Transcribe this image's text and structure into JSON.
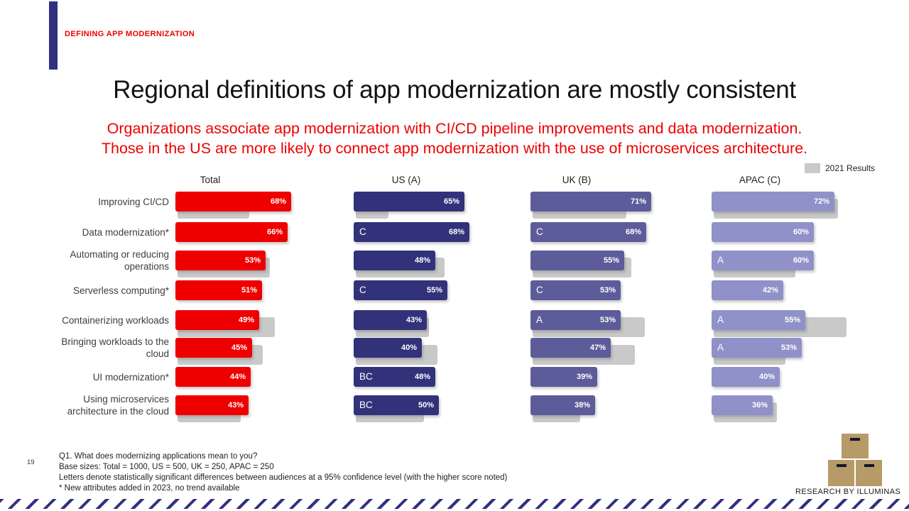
{
  "slide": {
    "eyebrow": "DEFINING APP MODERNIZATION",
    "title": "Regional definitions of app modernization are mostly consistent",
    "subtitle_line1": "Organizations associate app modernization with CI/CD pipeline improvements and data modernization.",
    "subtitle_line2": "Those in the US are more likely to connect app modernization with the use of microservices architecture.",
    "legend": {
      "label": "2021 Results"
    },
    "page_number": "19",
    "footnotes": [
      "Q1. What does modernizing applications mean to you?",
      "Base sizes: Total = 1000, US = 500, UK = 250, APAC = 250",
      "Letters denote statistically significant differences between audiences at a 95% confidence level (with the higher score noted)",
      "* New attributes added in 2023, no trend available"
    ],
    "logo_text": "RESEARCH BY ILLUMINAS"
  },
  "colors": {
    "red": "#EE0000",
    "navy": "#32327B",
    "slate": "#5C5C9B",
    "light_purple": "#8F91C8",
    "trend_gray": "#C9C9C9",
    "accent_navy": "#2F3280",
    "logo_tan": "#B69A67"
  },
  "chart_data": {
    "type": "bar",
    "orientation": "horizontal",
    "unit": "%",
    "trend_legend": "2021 Results",
    "categories": [
      "Improving CI/CD",
      "Data modernization*",
      "Automating or reducing operations",
      "Serverless computing*",
      "Containerizing workloads",
      "Bringing workloads to the cloud",
      "UI modernization*",
      "Using microservices architecture in the cloud"
    ],
    "series": [
      {
        "name": "Total",
        "color": "#EE0000",
        "values": [
          68,
          66,
          53,
          51,
          49,
          45,
          44,
          43
        ],
        "letters": [
          "",
          "",
          "",
          "",
          "",
          "",
          "",
          ""
        ],
        "values_2021": [
          42,
          null,
          54,
          null,
          57,
          50,
          null,
          37
        ]
      },
      {
        "name": "US (A)",
        "color": "#32327B",
        "values": [
          65,
          68,
          48,
          55,
          43,
          40,
          48,
          50
        ],
        "letters": [
          "",
          "C",
          "",
          "C",
          "",
          "",
          "BC",
          "BC"
        ],
        "values_2021": [
          19,
          null,
          52,
          null,
          43,
          48,
          null,
          40
        ]
      },
      {
        "name": "UK (B)",
        "color": "#5C5C9B",
        "values": [
          71,
          68,
          55,
          53,
          53,
          47,
          39,
          38
        ],
        "letters": [
          "",
          "C",
          "",
          "C",
          "A",
          "",
          "",
          ""
        ],
        "values_2021": [
          55,
          null,
          58,
          null,
          66,
          60,
          null,
          28
        ]
      },
      {
        "name": "APAC (C)",
        "color": "#8F91C8",
        "values": [
          72,
          60,
          60,
          42,
          55,
          53,
          40,
          36
        ],
        "letters": [
          "",
          "",
          "A",
          "",
          "A",
          "A",
          "",
          ""
        ],
        "values_2021": [
          73,
          null,
          48,
          null,
          78,
          42,
          null,
          37
        ]
      }
    ],
    "value_range": [
      0,
      80
    ],
    "note": "Gray bars are 2021 results; starred attributes added in 2023 have no 2021 bar"
  }
}
